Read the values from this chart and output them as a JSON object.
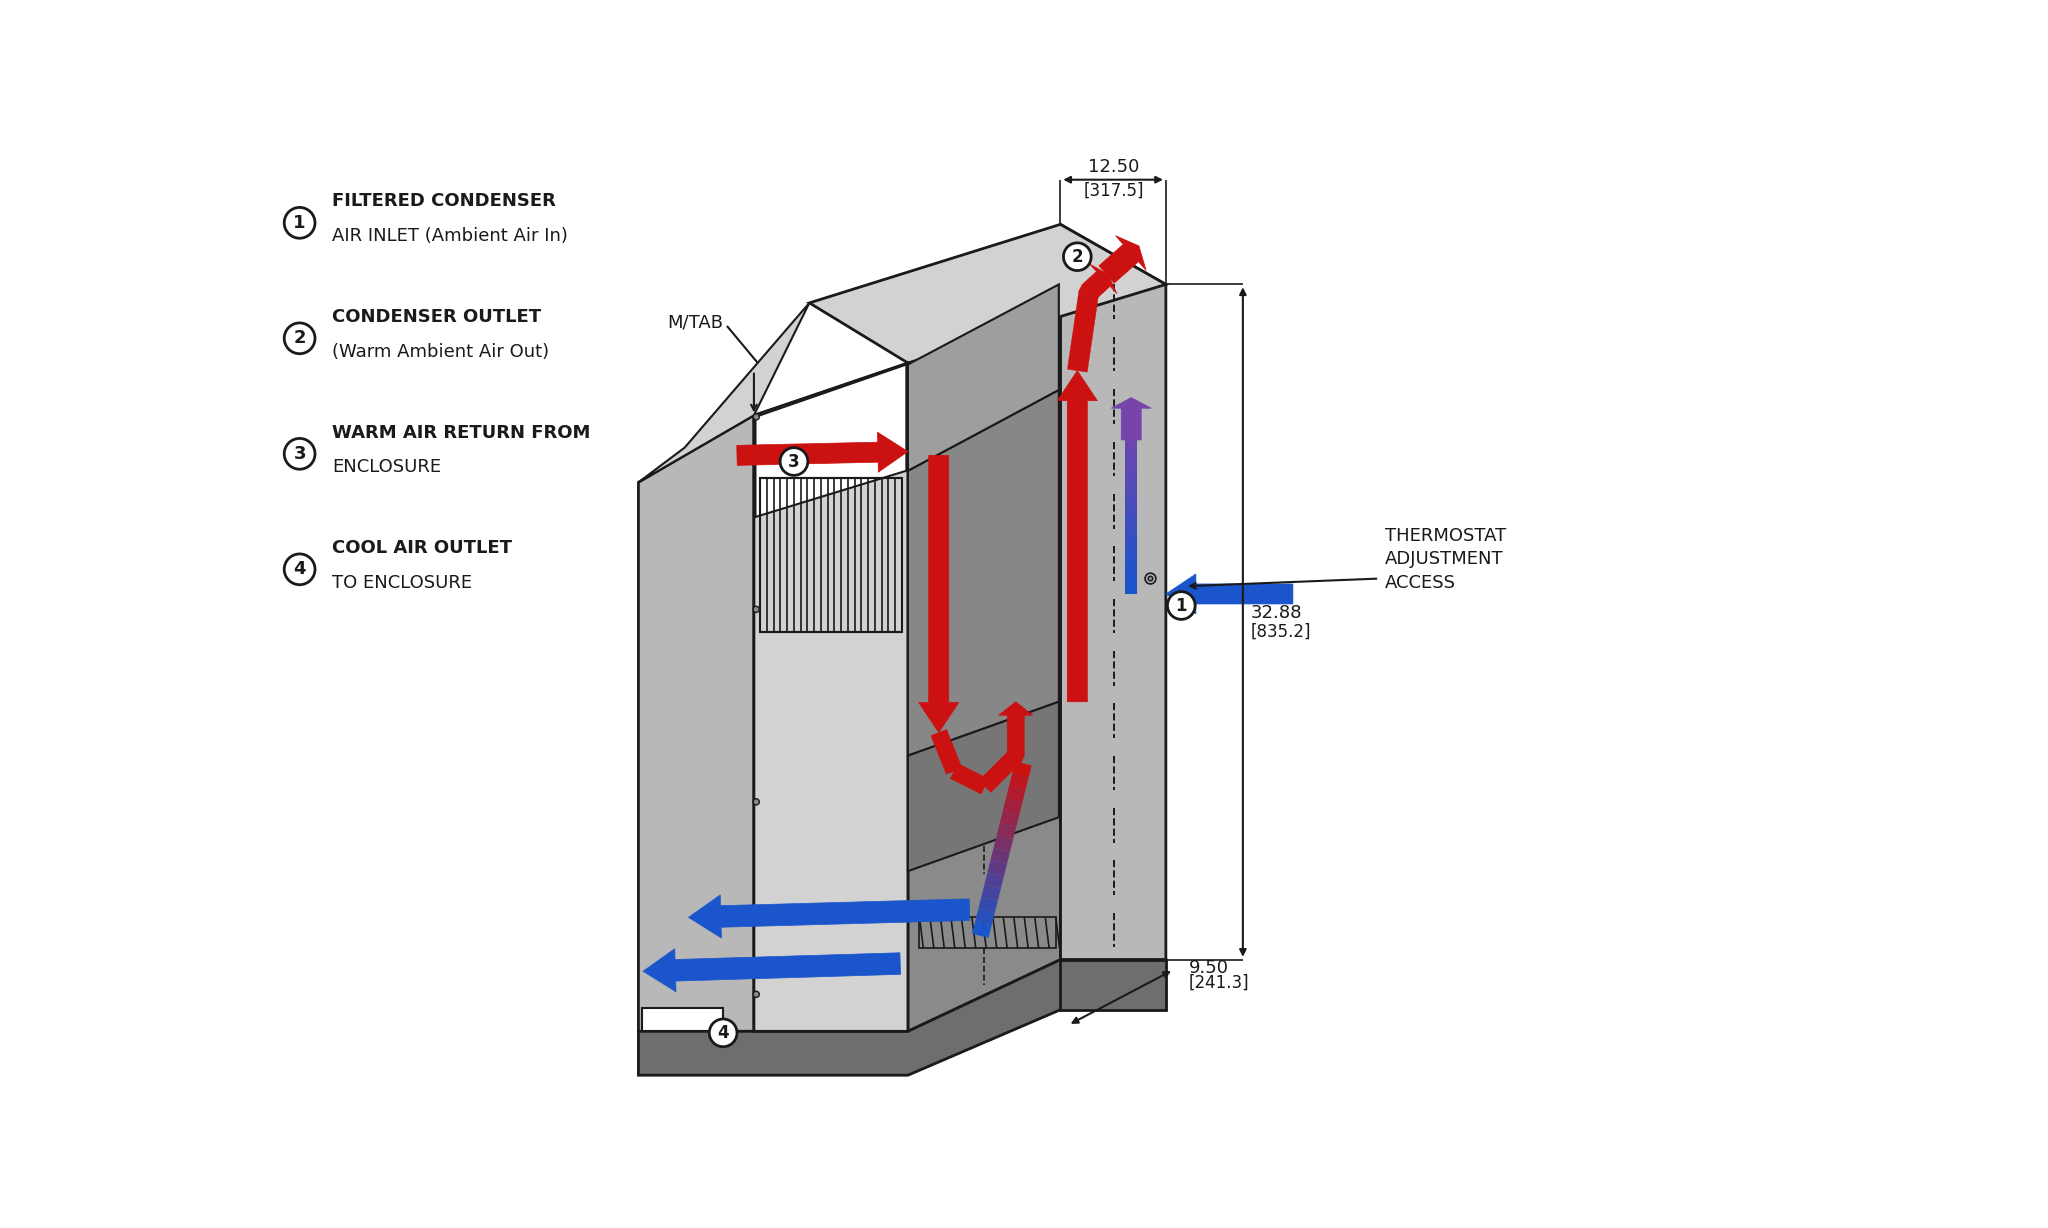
{
  "bg_color": "#ffffff",
  "lc": "#1a1a1a",
  "gray_light": "#d2d2d2",
  "gray_mid": "#b8b8b8",
  "gray_dark": "#8a8a8a",
  "gray_darker": "#6e6e6e",
  "gray_inner": "#707070",
  "red": "#cc1111",
  "blue": "#1a55cc",
  "purple": "#7744aa",
  "legend": [
    {
      "num": "1",
      "bold": "FILTERED CONDENSER",
      "normal": "AIR INLET (Ambient Air In)"
    },
    {
      "num": "2",
      "bold": "CONDENSER OUTLET",
      "normal": "(Warm Ambient Air Out)"
    },
    {
      "num": "3",
      "bold": "WARM AIR RETURN FROM",
      "normal": "ENCLOSURE"
    },
    {
      "num": "4",
      "bold": "COOL AIR OUTLET",
      "normal": "TO ENCLOSURE"
    }
  ],
  "dim_top_val": "12.50",
  "dim_top_bkt": "[317.5]",
  "dim_right_val": "32.88",
  "dim_right_bkt": "[835.2]",
  "dim_bot_val": "9.50",
  "dim_bot_bkt": "[241.3]",
  "mtab": "M/TAB",
  "thermostat": "THERMOSTAT\nADJUSTMENT\nACCESS"
}
